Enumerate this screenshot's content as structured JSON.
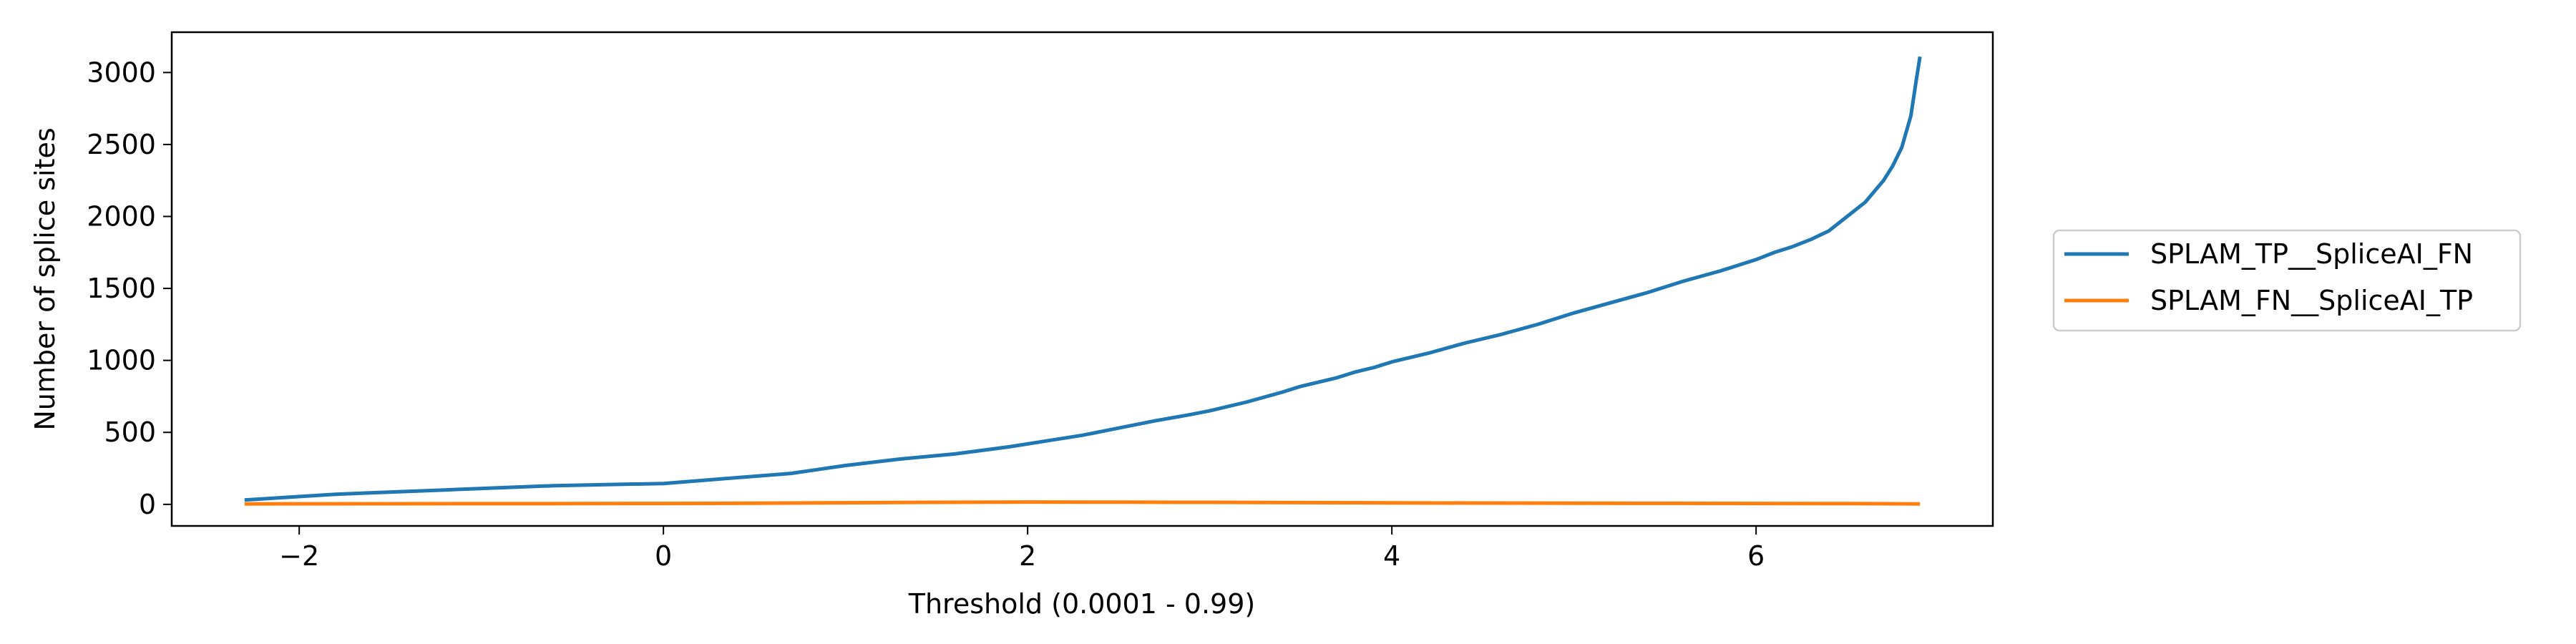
{
  "chart_data": {
    "type": "line",
    "title": "",
    "xlabel": "Threshold (0.0001 - 0.99)",
    "ylabel": "Number of splice sites",
    "xlim": [
      -2.7,
      7.3
    ],
    "ylim": [
      -150,
      3280
    ],
    "x_ticks": [
      -2,
      0,
      2,
      4,
      6
    ],
    "x_tick_labels": [
      "−2",
      "0",
      "2",
      "4",
      "6"
    ],
    "y_ticks": [
      0,
      500,
      1000,
      1500,
      2000,
      2500,
      3000
    ],
    "y_tick_labels": [
      "0",
      "500",
      "1000",
      "1500",
      "2000",
      "2500",
      "3000"
    ],
    "grid": false,
    "legend_position": "outside-right",
    "series": [
      {
        "name": "SPLAM_TP__SpliceAI_FN",
        "color": "#1f77b4",
        "x": [
          -2.3,
          -1.8,
          -1.2,
          -0.6,
          0.0,
          0.3,
          0.7,
          1.0,
          1.3,
          1.6,
          1.9,
          2.1,
          2.3,
          2.5,
          2.7,
          2.9,
          3.0,
          3.2,
          3.4,
          3.5,
          3.7,
          3.8,
          3.9,
          4.0,
          4.2,
          4.4,
          4.6,
          4.8,
          5.0,
          5.2,
          5.4,
          5.6,
          5.8,
          6.0,
          6.1,
          6.2,
          6.3,
          6.4,
          6.5,
          6.6,
          6.7,
          6.75,
          6.8,
          6.85,
          6.88,
          6.9
        ],
        "y": [
          30,
          70,
          100,
          130,
          145,
          175,
          215,
          270,
          315,
          350,
          400,
          440,
          480,
          530,
          580,
          625,
          650,
          710,
          780,
          820,
          880,
          920,
          950,
          990,
          1050,
          1120,
          1180,
          1250,
          1330,
          1400,
          1470,
          1550,
          1620,
          1700,
          1750,
          1790,
          1840,
          1900,
          2000,
          2100,
          2250,
          2350,
          2480,
          2700,
          2950,
          3110
        ]
      },
      {
        "name": "SPLAM_FN__SpliceAI_TP",
        "color": "#ff7f0e",
        "x": [
          -2.3,
          -1.5,
          -0.5,
          0.0,
          0.5,
          1.0,
          1.5,
          2.0,
          2.5,
          3.0,
          3.5,
          4.0,
          4.5,
          5.0,
          5.5,
          6.0,
          6.5,
          6.9
        ],
        "y": [
          3,
          4,
          5,
          6,
          8,
          11,
          14,
          16,
          15,
          14,
          12,
          10,
          9,
          8,
          7,
          6,
          5,
          3
        ]
      }
    ]
  }
}
